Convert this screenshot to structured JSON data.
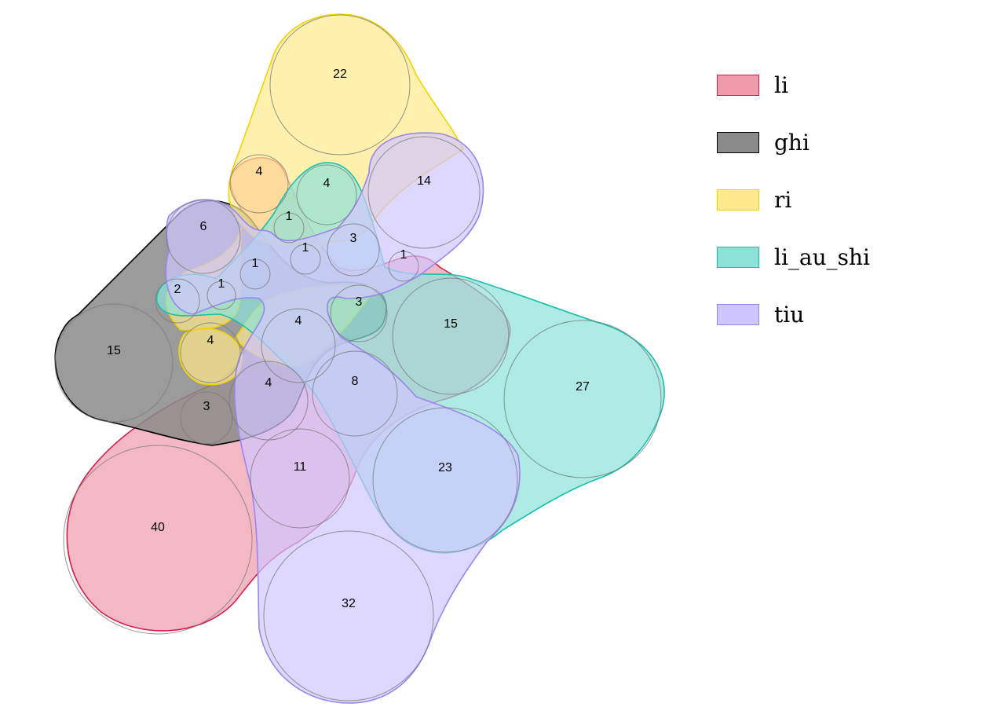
{
  "sets": [
    {
      "name": "li",
      "fill": "#f09aac",
      "stroke": "#d81b4f"
    },
    {
      "name": "ghi",
      "fill": "#8a8a8a",
      "stroke": "#000000"
    },
    {
      "name": "ri",
      "fill": "#ffe98a",
      "stroke": "#f2d300"
    },
    {
      "name": "li_au_shi",
      "fill": "#8be3d8",
      "stroke": "#19bfae"
    },
    {
      "name": "tiu",
      "fill": "#d0c6ff",
      "stroke": "#9a86ef"
    }
  ],
  "regions": [
    {
      "label": "22"
    },
    {
      "label": "14"
    },
    {
      "label": "4"
    },
    {
      "label": "4"
    },
    {
      "label": "1"
    },
    {
      "label": "6"
    },
    {
      "label": "1"
    },
    {
      "label": "3"
    },
    {
      "label": "1"
    },
    {
      "label": "1"
    },
    {
      "label": "2"
    },
    {
      "label": "1"
    },
    {
      "label": "3"
    },
    {
      "label": "4"
    },
    {
      "label": "15"
    },
    {
      "label": "4"
    },
    {
      "label": "15"
    },
    {
      "label": "27"
    },
    {
      "label": "4"
    },
    {
      "label": "8"
    },
    {
      "label": "3"
    },
    {
      "label": "11"
    },
    {
      "label": "23"
    },
    {
      "label": "40"
    },
    {
      "label": "32"
    }
  ]
}
